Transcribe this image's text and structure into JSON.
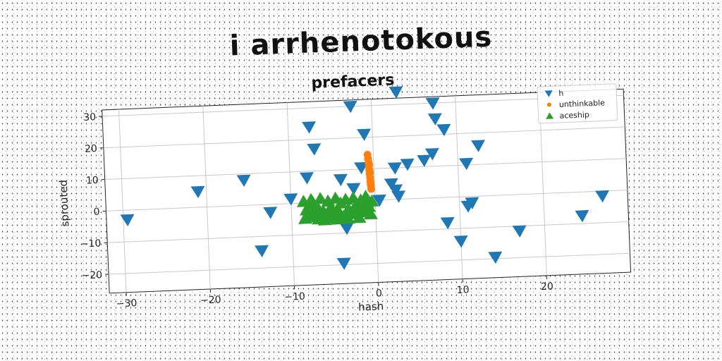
{
  "page_title": "i arrhenotokous",
  "chart_data": {
    "type": "scatter",
    "title": "prefacers",
    "xlabel": "hash",
    "ylabel": "sprouted",
    "xlim": [
      -32,
      30
    ],
    "ylim": [
      -26,
      32
    ],
    "xticks": [
      -30,
      -20,
      -10,
      0,
      10,
      20
    ],
    "xtick_labels": [
      "−30",
      "−20",
      "−10",
      "0",
      "10",
      "20"
    ],
    "yticks": [
      -20,
      -10,
      0,
      10,
      20,
      30
    ],
    "ytick_labels": [
      "−20",
      "−10",
      "0",
      "10",
      "20",
      "30"
    ],
    "grid": true,
    "legend_position": "top-right",
    "series": [
      {
        "name": "h",
        "marker": "triangle-down",
        "color": "#1f77b4",
        "points": [
          [
            -29.5,
            -3
          ],
          [
            -21,
            5
          ],
          [
            -15.5,
            8
          ],
          [
            -13.7,
            -14.5
          ],
          [
            -12.5,
            -2.5
          ],
          [
            -10,
            1.5
          ],
          [
            -8,
            8
          ],
          [
            -7.5,
            24
          ],
          [
            -7,
            17
          ],
          [
            -4,
            7
          ],
          [
            -4,
            -19.5
          ],
          [
            -3.5,
            -8.5
          ],
          [
            -2.5,
            30
          ],
          [
            -2.5,
            4
          ],
          [
            -1.5,
            10.5
          ],
          [
            -1,
            21
          ],
          [
            -1,
            -1
          ],
          [
            0.5,
            0
          ],
          [
            2,
            5
          ],
          [
            2.5,
            3
          ],
          [
            2.5,
            10
          ],
          [
            2.8,
            1
          ],
          [
            3,
            34
          ],
          [
            4,
            11
          ],
          [
            6,
            12
          ],
          [
            7,
            14
          ],
          [
            7.3,
            30
          ],
          [
            7.5,
            25
          ],
          [
            8.5,
            21.5
          ],
          [
            8.5,
            -8
          ],
          [
            10,
            -14
          ],
          [
            11,
            10.5
          ],
          [
            11,
            -3
          ],
          [
            11.5,
            -2
          ],
          [
            12.5,
            16
          ],
          [
            14,
            -19.5
          ],
          [
            17,
            -11.5
          ],
          [
            24.5,
            -7.5
          ],
          [
            27,
            -1.5
          ]
        ]
      },
      {
        "name": "unthinkable",
        "marker": "circle",
        "color": "#ff7f0e",
        "points": [
          [
            -0.7,
            14.5
          ],
          [
            -0.65,
            13.2
          ],
          [
            -0.6,
            12
          ],
          [
            -0.58,
            10.8
          ],
          [
            -0.55,
            9.6
          ],
          [
            -0.53,
            8.4
          ],
          [
            -0.5,
            7.2
          ],
          [
            -0.48,
            6
          ],
          [
            -0.45,
            4.8
          ],
          [
            -0.42,
            3.6
          ],
          [
            -0.55,
            11.4
          ],
          [
            -0.5,
            8.8
          ],
          [
            -0.46,
            5.4
          ]
        ]
      },
      {
        "name": "aceship",
        "marker": "triangle-up",
        "color": "#2ca02c",
        "points": [
          [
            -8.5,
            0.5
          ],
          [
            -8.2,
            -2.2
          ],
          [
            -7.9,
            -4.5
          ],
          [
            -7.6,
            1
          ],
          [
            -7.3,
            -3.3
          ],
          [
            -7,
            -1
          ],
          [
            -6.8,
            -5.2
          ],
          [
            -6.5,
            1.2
          ],
          [
            -6.2,
            -2.8
          ],
          [
            -5.9,
            -4.2
          ],
          [
            -5.6,
            0.3
          ],
          [
            -5.3,
            -1.7
          ],
          [
            -5,
            -5
          ],
          [
            -4.7,
            1.1
          ],
          [
            -4.4,
            -3
          ],
          [
            -4.1,
            -0.5
          ],
          [
            -3.8,
            -4.7
          ],
          [
            -3.5,
            0.6
          ],
          [
            -3.2,
            -2.4
          ],
          [
            -2.9,
            -4
          ],
          [
            -2.6,
            1
          ],
          [
            -2.3,
            -1.2
          ],
          [
            -2,
            -5.3
          ],
          [
            -1.7,
            0.2
          ],
          [
            -1.4,
            -3.6
          ],
          [
            -1.1,
            1.3
          ],
          [
            -0.8,
            -2
          ],
          [
            -0.6,
            -4.3
          ],
          [
            -0.4,
            -0.3
          ],
          [
            -8.4,
            -4.9
          ],
          [
            -6.1,
            -5.6
          ],
          [
            -4.6,
            -5.5
          ],
          [
            -2.1,
            -3.1
          ],
          [
            -1,
            -0.8
          ],
          [
            -7.8,
            -0.4
          ],
          [
            -5.5,
            -2.6
          ],
          [
            -3.3,
            -5.4
          ],
          [
            -1.9,
            -1.5
          ],
          [
            -6.7,
            -3.6
          ],
          [
            -4.9,
            -3.6
          ]
        ]
      }
    ]
  }
}
